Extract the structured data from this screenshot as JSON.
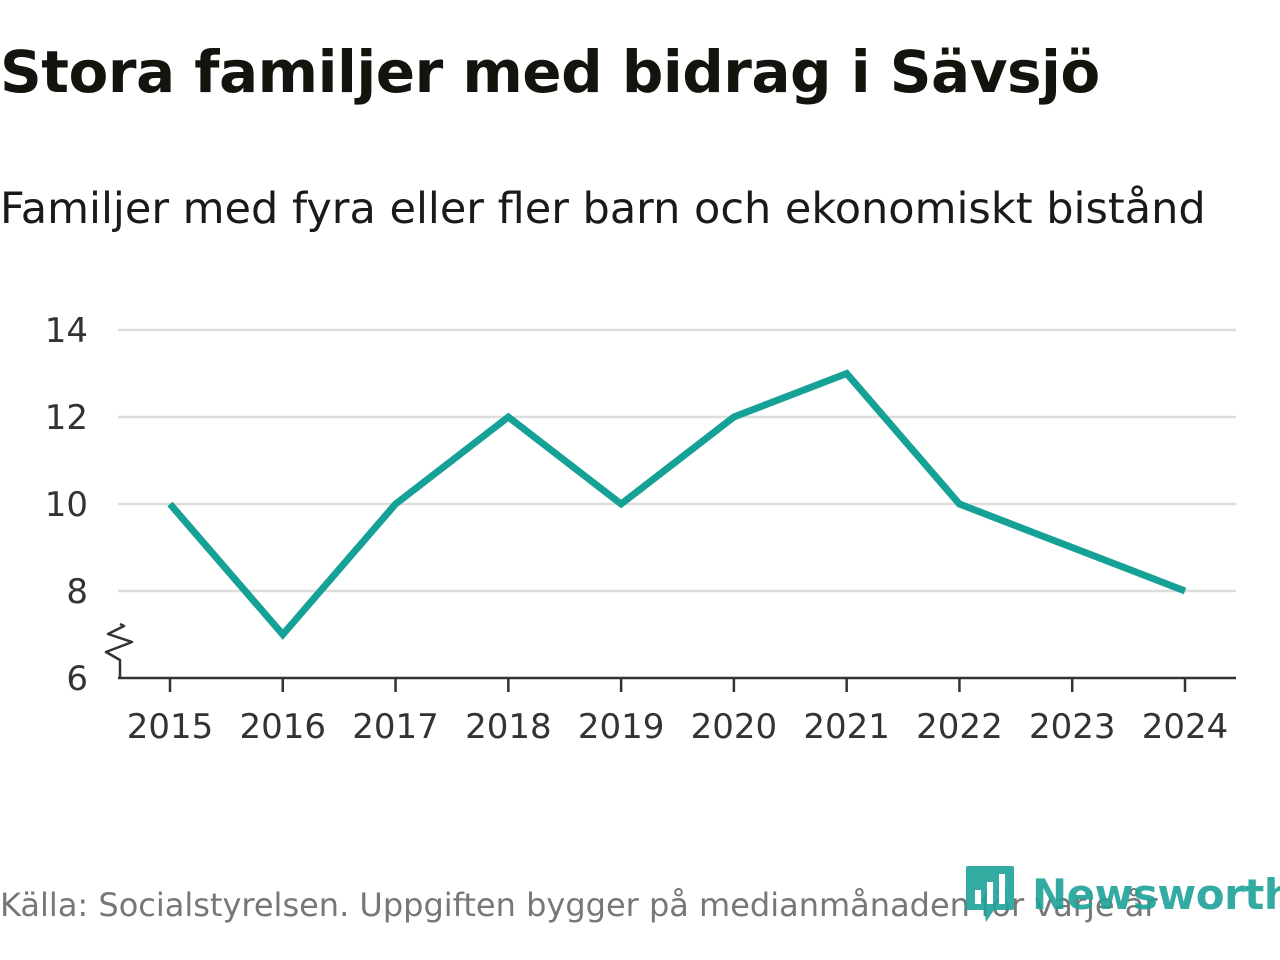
{
  "header": {
    "title": "Stora familjer med bidrag i Sävsjö",
    "subtitle": "Familjer med fyra eller fler barn och ekonomiskt bistånd"
  },
  "footer": {
    "source": "Källa: Socialstyrelsen. Uppgiften bygger på medianmånaden för varje år",
    "brand": "Newsworthy"
  },
  "colors": {
    "line": "#16a197",
    "grid": "#dddddd",
    "axis": "#333333",
    "brand": "#1fa398"
  },
  "chart_data": {
    "type": "line",
    "title": "Stora familjer med bidrag i Sävsjö",
    "subtitle": "Familjer med fyra eller fler barn och ekonomiskt bistånd",
    "xlabel": "",
    "ylabel": "",
    "categories": [
      "2015",
      "2016",
      "2017",
      "2018",
      "2019",
      "2020",
      "2021",
      "2022",
      "2023",
      "2024"
    ],
    "series": [
      {
        "name": "Familjer med fyra eller fler barn och ekonomiskt bistånd",
        "values": [
          10,
          7,
          10,
          12,
          10,
          12,
          13,
          10,
          9,
          8
        ]
      }
    ],
    "ylim": [
      6,
      14
    ],
    "yticks": [
      "6",
      "8",
      "10",
      "12",
      "14"
    ],
    "y_axis_break": true,
    "grid": true,
    "legend": "none"
  }
}
